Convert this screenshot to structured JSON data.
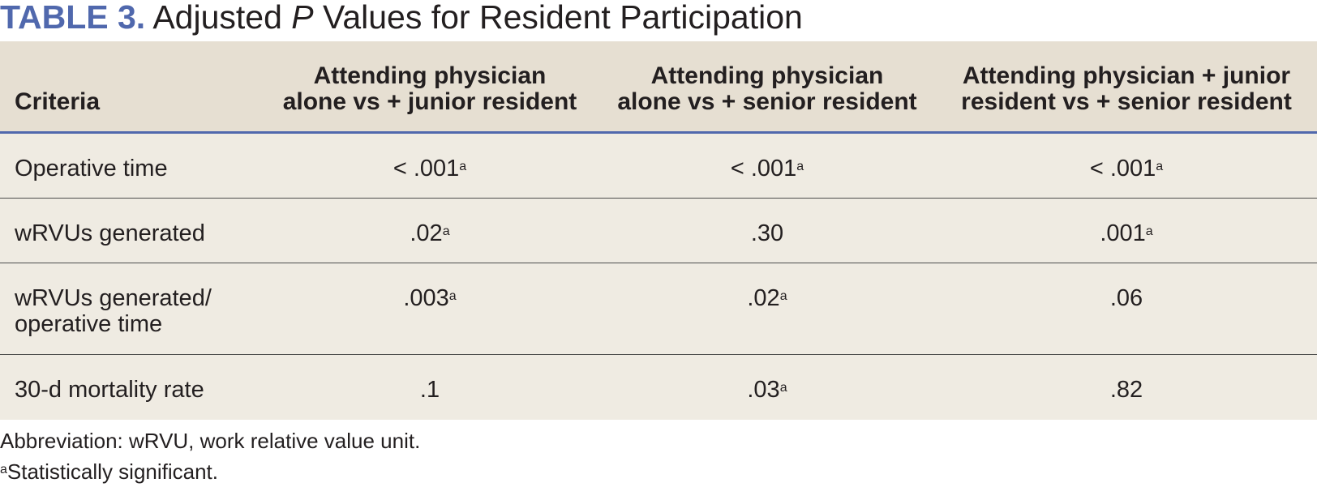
{
  "title": {
    "label": "TABLE 3.",
    "pre": " Adjusted ",
    "italic": "P",
    "post": " Values for Resident Participation"
  },
  "columns": [
    {
      "line1": "Criteria",
      "line2": ""
    },
    {
      "line1": "Attending physician",
      "line2": "alone vs + junior resident"
    },
    {
      "line1": "Attending physician",
      "line2": "alone vs + senior resident"
    },
    {
      "line1": "Attending physician + junior",
      "line2": "resident vs + senior resident"
    }
  ],
  "rows": [
    {
      "criteria_line1": "Operative time",
      "criteria_line2": "",
      "cells": [
        {
          "value": "< .001",
          "mark": "a"
        },
        {
          "value": "< .001",
          "mark": "a"
        },
        {
          "value": "< .001",
          "mark": "a"
        }
      ]
    },
    {
      "criteria_line1": "wRVUs generated",
      "criteria_line2": "",
      "cells": [
        {
          "value": ".02",
          "mark": "a"
        },
        {
          "value": ".30",
          "mark": ""
        },
        {
          "value": ".001",
          "mark": "a"
        }
      ]
    },
    {
      "criteria_line1": "wRVUs generated/",
      "criteria_line2": "operative time",
      "cells": [
        {
          "value": ".003",
          "mark": "a"
        },
        {
          "value": ".02",
          "mark": "a"
        },
        {
          "value": ".06",
          "mark": ""
        }
      ]
    },
    {
      "criteria_line1": "30-d mortality rate",
      "criteria_line2": "",
      "cells": [
        {
          "value": ".1",
          "mark": ""
        },
        {
          "value": ".03",
          "mark": "a"
        },
        {
          "value": ".82",
          "mark": ""
        }
      ]
    }
  ],
  "footnotes": {
    "abbreviation": "Abbreviation: wRVU, work relative value unit.",
    "significance_mark": "a",
    "significance_text": "Statistically significant."
  }
}
